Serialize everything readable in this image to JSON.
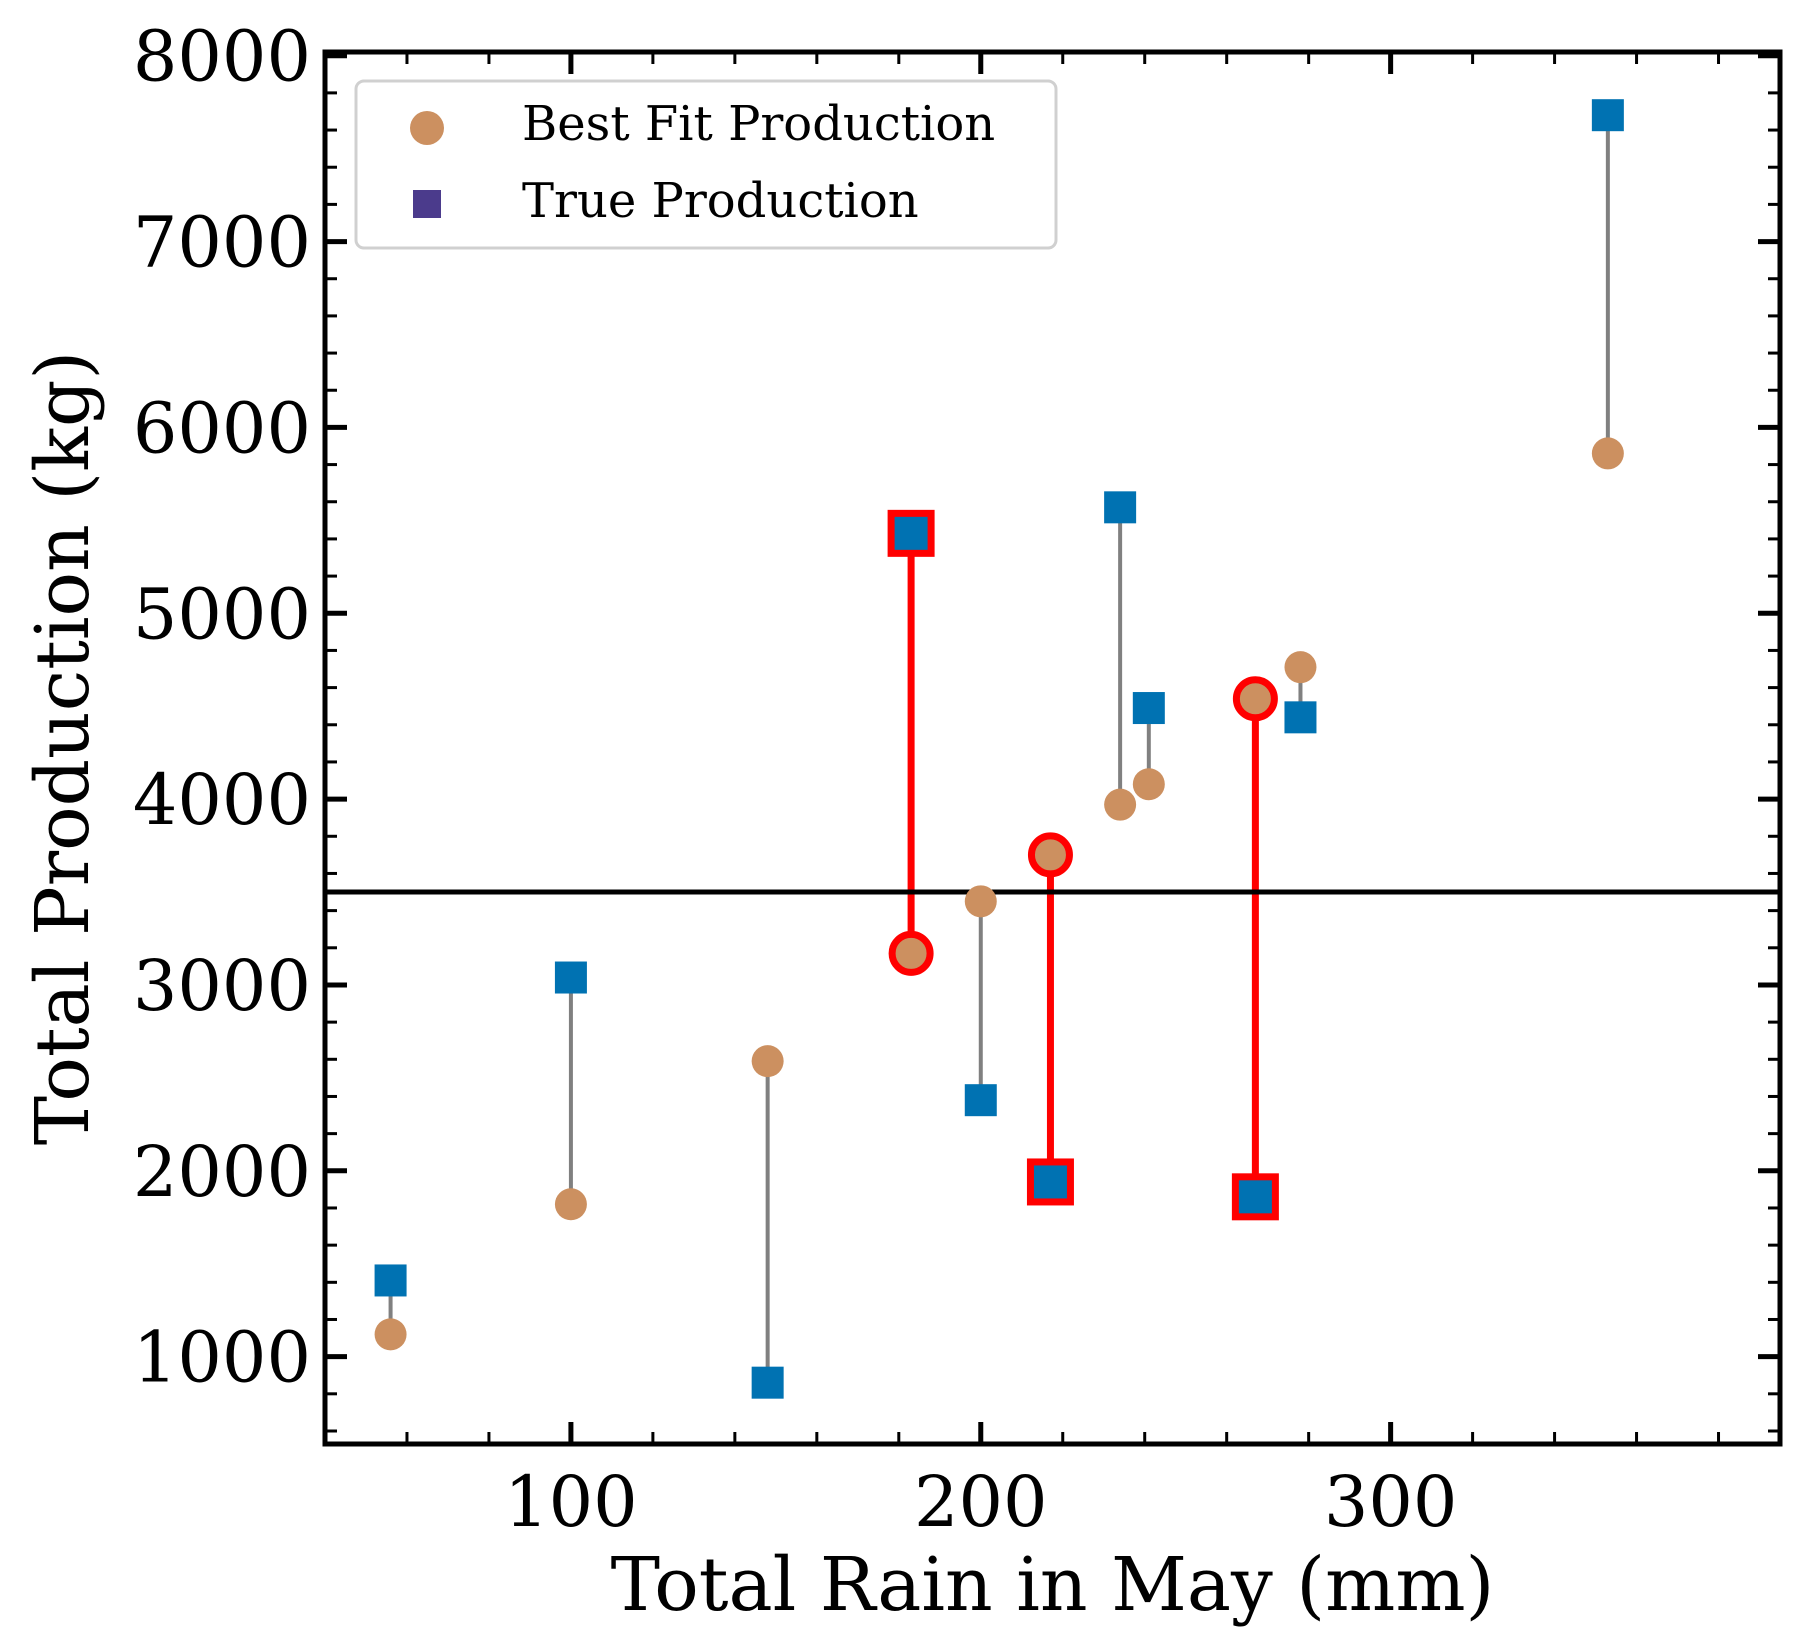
{
  "chart_data": {
    "type": "scatter",
    "title": "",
    "xlabel": "Total Rain in May (mm)",
    "ylabel": "Total Production (kg)",
    "xlim": [
      40,
      395
    ],
    "ylim": [
      530,
      8020
    ],
    "xticks": [
      100,
      200,
      300
    ],
    "xtick_labels": [
      "100",
      "200",
      "300"
    ],
    "yticks": [
      1000,
      2000,
      3000,
      4000,
      5000,
      6000,
      7000,
      8000
    ],
    "ytick_labels": [
      "1000",
      "2000",
      "3000",
      "4000",
      "5000",
      "6000",
      "7000",
      "8000"
    ],
    "grid": false,
    "legend_position": "top-left",
    "threshold": 3500,
    "series": [
      {
        "name": "Best Fit Production",
        "marker": "circle",
        "legend_color": "#cc9060",
        "x": [
          56,
          100,
          148,
          183,
          200,
          217,
          234,
          241,
          267,
          278,
          353
        ],
        "y": [
          1120,
          1820,
          2590,
          3170,
          3450,
          3700,
          3970,
          4080,
          4540,
          4710,
          5860
        ]
      },
      {
        "name": "True Production",
        "marker": "square",
        "legend_color": "#4b3b8c",
        "x": [
          56,
          100,
          148,
          183,
          200,
          217,
          234,
          241,
          267,
          278,
          353
        ],
        "y": [
          1410,
          3040,
          860,
          5430,
          2380,
          1940,
          5570,
          4490,
          1860,
          4440,
          7680
        ]
      }
    ],
    "highlighted_points": [
      3,
      5,
      8
    ],
    "colors": {
      "fit_marker": "#cc9060",
      "true_marker": "#0072b2",
      "connector": "#808080",
      "highlight": "#ff0000",
      "threshold_line": "#000000"
    }
  }
}
